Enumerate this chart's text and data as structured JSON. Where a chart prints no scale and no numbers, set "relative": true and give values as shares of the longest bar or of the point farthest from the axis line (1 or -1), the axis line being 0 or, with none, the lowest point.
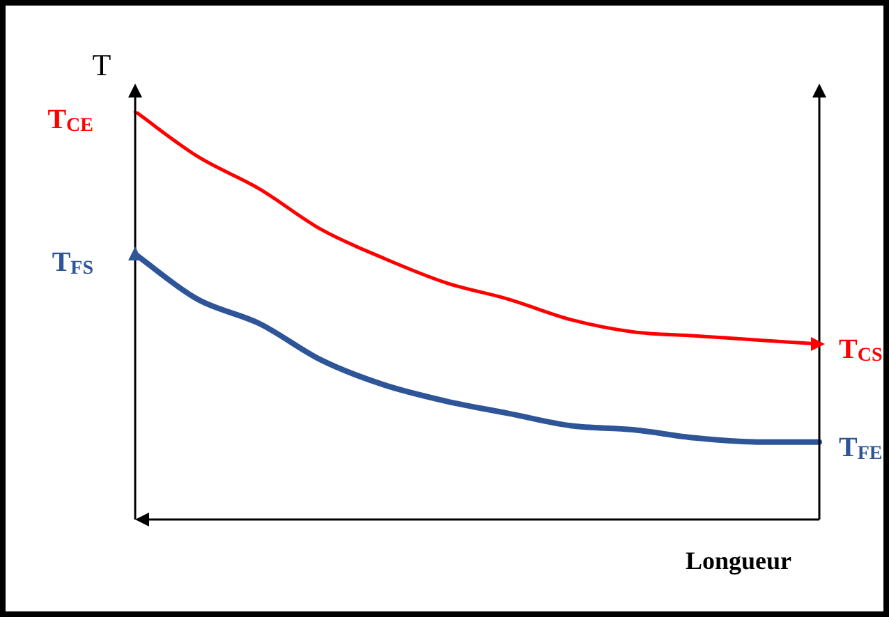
{
  "chart_data": {
    "type": "line",
    "relative": true,
    "ylabel": "T",
    "xlabel": "Longueur",
    "categories": [
      null,
      null,
      null,
      null,
      null,
      null,
      null,
      null,
      null,
      null,
      null,
      null
    ],
    "series": [
      {
        "color": "#ff0000",
        "values": [
          1,
          0.89,
          0.81,
          0.71,
          0.64,
          0.58,
          0.54,
          0.49,
          0.46,
          0.45,
          0.44,
          0.43
        ]
      },
      {
        "color": "#2e5597",
        "values": [
          0.65,
          0.54,
          0.48,
          0.39,
          0.33,
          0.29,
          0.26,
          0.23,
          0.22,
          0.2,
          0.19,
          0.19
        ]
      }
    ],
    "annotations": [
      "T$_{CE}$",
      "T$_{FS}$",
      "T$_{CS}$",
      "T$_{FE}$"
    ],
    "legend": false,
    "marker": "none",
    "line_style": "solid"
  }
}
